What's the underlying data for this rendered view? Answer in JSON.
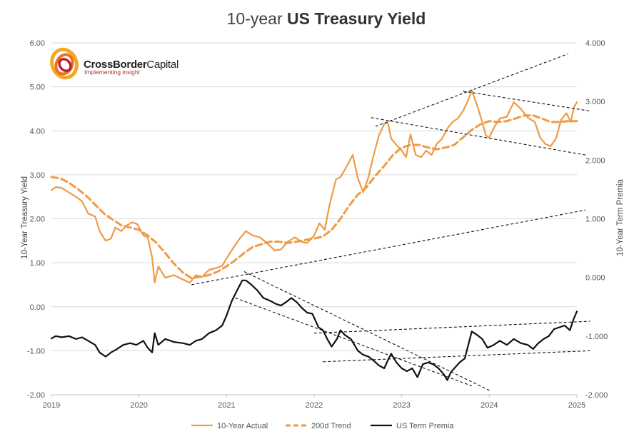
{
  "chart_data": {
    "type": "line",
    "title_prefix": "10-year ",
    "title_bold": "US Treasury Yield",
    "ylabel_left": "10-Year Treasury Yield",
    "ylabel_right": "10-Year Term Premia",
    "ylim_left": [
      -2.0,
      6.0
    ],
    "ylim_right": [
      -2.0,
      4.0
    ],
    "xlim": [
      2019.0,
      2025.0
    ],
    "x_ticks": [
      "2019",
      "2020",
      "2021",
      "2022",
      "2023",
      "2024",
      "2025"
    ],
    "y_ticks_left": [
      "6.00",
      "5.00",
      "4.00",
      "3.00",
      "2.00",
      "1.00",
      "0.00",
      "-1.00",
      "-2.00"
    ],
    "y_ticks_right": [
      "4.000",
      "3.000",
      "2.000",
      "1.000",
      "0.000",
      "-1.000",
      "-2.000"
    ],
    "grid": "horizontal",
    "legend_position": "bottom",
    "logo": {
      "name_bold": "CrossBorder",
      "name_regular": "Capital",
      "tagline": "Implementing insight"
    },
    "series": [
      {
        "name": "10-Year Actual",
        "axis": "left",
        "color": "#ef9a45",
        "style": "solid",
        "points": [
          [
            2019.0,
            2.65
          ],
          [
            2019.05,
            2.72
          ],
          [
            2019.12,
            2.7
          ],
          [
            2019.2,
            2.6
          ],
          [
            2019.28,
            2.5
          ],
          [
            2019.35,
            2.4
          ],
          [
            2019.42,
            2.12
          ],
          [
            2019.5,
            2.05
          ],
          [
            2019.55,
            1.72
          ],
          [
            2019.62,
            1.5
          ],
          [
            2019.68,
            1.55
          ],
          [
            2019.73,
            1.8
          ],
          [
            2019.8,
            1.72
          ],
          [
            2019.85,
            1.84
          ],
          [
            2019.92,
            1.92
          ],
          [
            2019.98,
            1.88
          ],
          [
            2020.05,
            1.62
          ],
          [
            2020.1,
            1.58
          ],
          [
            2020.15,
            1.12
          ],
          [
            2020.18,
            0.55
          ],
          [
            2020.22,
            0.92
          ],
          [
            2020.3,
            0.66
          ],
          [
            2020.4,
            0.72
          ],
          [
            2020.5,
            0.62
          ],
          [
            2020.58,
            0.55
          ],
          [
            2020.65,
            0.72
          ],
          [
            2020.72,
            0.68
          ],
          [
            2020.8,
            0.84
          ],
          [
            2020.88,
            0.88
          ],
          [
            2020.95,
            0.93
          ],
          [
            2021.0,
            1.1
          ],
          [
            2021.08,
            1.35
          ],
          [
            2021.15,
            1.55
          ],
          [
            2021.22,
            1.72
          ],
          [
            2021.3,
            1.62
          ],
          [
            2021.38,
            1.58
          ],
          [
            2021.46,
            1.45
          ],
          [
            2021.55,
            1.28
          ],
          [
            2021.62,
            1.3
          ],
          [
            2021.7,
            1.48
          ],
          [
            2021.78,
            1.58
          ],
          [
            2021.85,
            1.48
          ],
          [
            2021.92,
            1.45
          ],
          [
            2022.0,
            1.62
          ],
          [
            2022.06,
            1.9
          ],
          [
            2022.12,
            1.75
          ],
          [
            2022.18,
            2.35
          ],
          [
            2022.25,
            2.9
          ],
          [
            2022.3,
            2.95
          ],
          [
            2022.36,
            3.15
          ],
          [
            2022.44,
            3.45
          ],
          [
            2022.5,
            2.92
          ],
          [
            2022.56,
            2.6
          ],
          [
            2022.62,
            2.95
          ],
          [
            2022.68,
            3.45
          ],
          [
            2022.74,
            3.9
          ],
          [
            2022.8,
            4.15
          ],
          [
            2022.84,
            4.2
          ],
          [
            2022.88,
            3.82
          ],
          [
            2022.94,
            3.68
          ],
          [
            2023.0,
            3.55
          ],
          [
            2023.05,
            3.4
          ],
          [
            2023.1,
            3.92
          ],
          [
            2023.16,
            3.45
          ],
          [
            2023.22,
            3.4
          ],
          [
            2023.28,
            3.55
          ],
          [
            2023.34,
            3.45
          ],
          [
            2023.4,
            3.7
          ],
          [
            2023.46,
            3.82
          ],
          [
            2023.52,
            4.05
          ],
          [
            2023.58,
            4.2
          ],
          [
            2023.64,
            4.28
          ],
          [
            2023.7,
            4.45
          ],
          [
            2023.76,
            4.7
          ],
          [
            2023.8,
            4.92
          ],
          [
            2023.86,
            4.58
          ],
          [
            2023.92,
            4.2
          ],
          [
            2023.96,
            3.9
          ],
          [
            2024.0,
            3.85
          ],
          [
            2024.06,
            4.1
          ],
          [
            2024.12,
            4.28
          ],
          [
            2024.2,
            4.32
          ],
          [
            2024.28,
            4.65
          ],
          [
            2024.36,
            4.5
          ],
          [
            2024.44,
            4.3
          ],
          [
            2024.52,
            4.2
          ],
          [
            2024.58,
            3.85
          ],
          [
            2024.64,
            3.7
          ],
          [
            2024.7,
            3.65
          ],
          [
            2024.76,
            3.82
          ],
          [
            2024.82,
            4.25
          ],
          [
            2024.88,
            4.4
          ],
          [
            2024.93,
            4.2
          ],
          [
            2024.97,
            4.55
          ],
          [
            2025.0,
            4.65
          ]
        ]
      },
      {
        "name": "200d Trend",
        "axis": "left",
        "color": "#ef9a45",
        "style": "dashed",
        "points": [
          [
            2019.0,
            2.95
          ],
          [
            2019.1,
            2.92
          ],
          [
            2019.2,
            2.82
          ],
          [
            2019.3,
            2.68
          ],
          [
            2019.4,
            2.52
          ],
          [
            2019.5,
            2.32
          ],
          [
            2019.6,
            2.12
          ],
          [
            2019.7,
            1.98
          ],
          [
            2019.8,
            1.85
          ],
          [
            2019.9,
            1.8
          ],
          [
            2020.0,
            1.75
          ],
          [
            2020.1,
            1.62
          ],
          [
            2020.2,
            1.45
          ],
          [
            2020.3,
            1.22
          ],
          [
            2020.4,
            0.98
          ],
          [
            2020.5,
            0.78
          ],
          [
            2020.6,
            0.65
          ],
          [
            2020.7,
            0.68
          ],
          [
            2020.8,
            0.72
          ],
          [
            2020.9,
            0.8
          ],
          [
            2021.0,
            0.92
          ],
          [
            2021.1,
            1.06
          ],
          [
            2021.2,
            1.22
          ],
          [
            2021.3,
            1.36
          ],
          [
            2021.4,
            1.42
          ],
          [
            2021.5,
            1.48
          ],
          [
            2021.6,
            1.48
          ],
          [
            2021.7,
            1.45
          ],
          [
            2021.8,
            1.48
          ],
          [
            2021.9,
            1.52
          ],
          [
            2022.0,
            1.55
          ],
          [
            2022.1,
            1.6
          ],
          [
            2022.2,
            1.75
          ],
          [
            2022.3,
            2.0
          ],
          [
            2022.4,
            2.3
          ],
          [
            2022.5,
            2.55
          ],
          [
            2022.6,
            2.72
          ],
          [
            2022.7,
            2.98
          ],
          [
            2022.8,
            3.2
          ],
          [
            2022.9,
            3.45
          ],
          [
            2023.0,
            3.62
          ],
          [
            2023.1,
            3.68
          ],
          [
            2023.2,
            3.68
          ],
          [
            2023.3,
            3.62
          ],
          [
            2023.4,
            3.58
          ],
          [
            2023.5,
            3.62
          ],
          [
            2023.6,
            3.68
          ],
          [
            2023.7,
            3.85
          ],
          [
            2023.8,
            4.02
          ],
          [
            2023.9,
            4.15
          ],
          [
            2024.0,
            4.22
          ],
          [
            2024.1,
            4.2
          ],
          [
            2024.2,
            4.22
          ],
          [
            2024.3,
            4.28
          ],
          [
            2024.4,
            4.35
          ],
          [
            2024.5,
            4.35
          ],
          [
            2024.6,
            4.28
          ],
          [
            2024.7,
            4.2
          ],
          [
            2024.8,
            4.2
          ],
          [
            2024.9,
            4.22
          ],
          [
            2025.0,
            4.22
          ]
        ]
      },
      {
        "name": "US Term Premia",
        "axis": "right",
        "color": "#111111",
        "style": "solid",
        "points": [
          [
            2019.0,
            -1.04
          ],
          [
            2019.05,
            -1.0
          ],
          [
            2019.12,
            -1.02
          ],
          [
            2019.2,
            -1.0
          ],
          [
            2019.28,
            -1.05
          ],
          [
            2019.35,
            -1.02
          ],
          [
            2019.42,
            -1.08
          ],
          [
            2019.5,
            -1.15
          ],
          [
            2019.55,
            -1.28
          ],
          [
            2019.62,
            -1.35
          ],
          [
            2019.68,
            -1.28
          ],
          [
            2019.75,
            -1.22
          ],
          [
            2019.82,
            -1.15
          ],
          [
            2019.9,
            -1.12
          ],
          [
            2019.97,
            -1.15
          ],
          [
            2020.05,
            -1.08
          ],
          [
            2020.1,
            -1.2
          ],
          [
            2020.15,
            -1.28
          ],
          [
            2020.18,
            -0.95
          ],
          [
            2020.22,
            -1.15
          ],
          [
            2020.3,
            -1.05
          ],
          [
            2020.4,
            -1.1
          ],
          [
            2020.5,
            -1.12
          ],
          [
            2020.58,
            -1.15
          ],
          [
            2020.65,
            -1.08
          ],
          [
            2020.72,
            -1.05
          ],
          [
            2020.8,
            -0.95
          ],
          [
            2020.88,
            -0.9
          ],
          [
            2020.95,
            -0.82
          ],
          [
            2021.0,
            -0.65
          ],
          [
            2021.06,
            -0.4
          ],
          [
            2021.12,
            -0.22
          ],
          [
            2021.18,
            -0.05
          ],
          [
            2021.22,
            -0.05
          ],
          [
            2021.28,
            -0.12
          ],
          [
            2021.35,
            -0.22
          ],
          [
            2021.42,
            -0.35
          ],
          [
            2021.5,
            -0.4
          ],
          [
            2021.56,
            -0.45
          ],
          [
            2021.62,
            -0.48
          ],
          [
            2021.68,
            -0.42
          ],
          [
            2021.74,
            -0.35
          ],
          [
            2021.8,
            -0.42
          ],
          [
            2021.86,
            -0.52
          ],
          [
            2021.92,
            -0.6
          ],
          [
            2021.98,
            -0.62
          ],
          [
            2022.05,
            -0.85
          ],
          [
            2022.1,
            -0.9
          ],
          [
            2022.15,
            -1.05
          ],
          [
            2022.2,
            -1.18
          ],
          [
            2022.26,
            -1.05
          ],
          [
            2022.3,
            -0.9
          ],
          [
            2022.35,
            -0.98
          ],
          [
            2022.42,
            -1.05
          ],
          [
            2022.5,
            -1.25
          ],
          [
            2022.56,
            -1.32
          ],
          [
            2022.62,
            -1.35
          ],
          [
            2022.68,
            -1.42
          ],
          [
            2022.74,
            -1.5
          ],
          [
            2022.8,
            -1.55
          ],
          [
            2022.84,
            -1.42
          ],
          [
            2022.88,
            -1.3
          ],
          [
            2022.94,
            -1.45
          ],
          [
            2023.0,
            -1.55
          ],
          [
            2023.06,
            -1.6
          ],
          [
            2023.12,
            -1.55
          ],
          [
            2023.18,
            -1.7
          ],
          [
            2023.24,
            -1.48
          ],
          [
            2023.3,
            -1.45
          ],
          [
            2023.36,
            -1.48
          ],
          [
            2023.42,
            -1.55
          ],
          [
            2023.48,
            -1.65
          ],
          [
            2023.52,
            -1.75
          ],
          [
            2023.56,
            -1.62
          ],
          [
            2023.6,
            -1.55
          ],
          [
            2023.66,
            -1.45
          ],
          [
            2023.72,
            -1.38
          ],
          [
            2023.76,
            -1.15
          ],
          [
            2023.8,
            -0.92
          ],
          [
            2023.86,
            -0.98
          ],
          [
            2023.92,
            -1.05
          ],
          [
            2023.98,
            -1.2
          ],
          [
            2024.05,
            -1.15
          ],
          [
            2024.12,
            -1.08
          ],
          [
            2024.2,
            -1.15
          ],
          [
            2024.28,
            -1.05
          ],
          [
            2024.36,
            -1.12
          ],
          [
            2024.44,
            -1.15
          ],
          [
            2024.5,
            -1.22
          ],
          [
            2024.56,
            -1.12
          ],
          [
            2024.62,
            -1.05
          ],
          [
            2024.68,
            -1.0
          ],
          [
            2024.74,
            -0.88
          ],
          [
            2024.8,
            -0.85
          ],
          [
            2024.86,
            -0.82
          ],
          [
            2024.92,
            -0.9
          ],
          [
            2024.96,
            -0.72
          ],
          [
            2025.0,
            -0.58
          ]
        ]
      }
    ],
    "trendlines": [
      {
        "axis": "left",
        "from": [
          2020.6,
          0.5
        ],
        "to": [
          2025.1,
          2.2
        ]
      },
      {
        "axis": "left",
        "from": [
          2022.7,
          4.1
        ],
        "to": [
          2024.9,
          5.75
        ]
      },
      {
        "axis": "left",
        "from": [
          2023.7,
          4.9
        ],
        "to": [
          2025.15,
          4.45
        ]
      },
      {
        "axis": "left",
        "from": [
          2022.65,
          4.3
        ],
        "to": [
          2025.1,
          3.45
        ]
      },
      {
        "axis": "left",
        "from": [
          2021.1,
          0.2
        ],
        "to": [
          2023.8,
          -1.8
        ]
      },
      {
        "axis": "left",
        "from": [
          2021.2,
          0.8
        ],
        "to": [
          2024.0,
          -1.9
        ]
      },
      {
        "axis": "left",
        "from": [
          2022.0,
          -0.6
        ],
        "to": [
          2025.15,
          -0.33
        ]
      },
      {
        "axis": "left",
        "from": [
          2022.1,
          -1.25
        ],
        "to": [
          2025.15,
          -1.0
        ]
      }
    ]
  }
}
